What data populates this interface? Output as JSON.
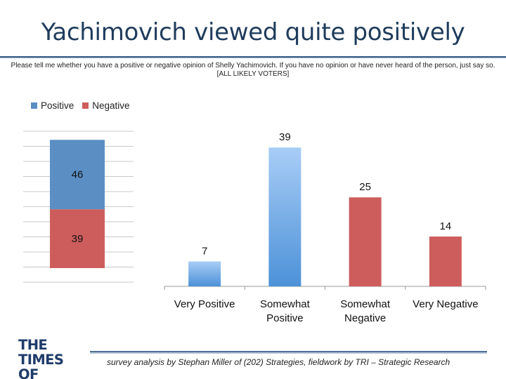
{
  "slide": {
    "title": "Yachimovich viewed quite positively",
    "question": "Please tell me whether you have a positive or negative opinion of Shelly Yachimovich. If you have no opinion or have never heard of the person, just say so. [ALL LIKELY VOTERS]",
    "footer_logo": "THE TIMES OF ISRAEL",
    "footer_credit": "survey analysis by Stephan Miller of (202) Strategies, fieldwork by TRI – Strategic Research"
  },
  "colors": {
    "title": "#1f3c5c",
    "positive": "#5b8fc4",
    "negative": "#cd5d5c",
    "positive_gradient_top": "#a8cdf6",
    "positive_gradient_bottom": "#4c91d8"
  },
  "chart_data": [
    {
      "type": "bar",
      "stacked": true,
      "categories": [
        ""
      ],
      "series": [
        {
          "name": "Positive",
          "values": [
            46
          ]
        },
        {
          "name": "Negative",
          "values": [
            39
          ]
        }
      ],
      "legend": "top-left",
      "grid": true,
      "ylim": [
        0,
        100
      ]
    },
    {
      "type": "bar",
      "categories": [
        "Very Positive",
        "Somewhat Positive",
        "Somewhat Negative",
        "Very Negative"
      ],
      "values": [
        7,
        39,
        25,
        14
      ],
      "ylim": [
        0,
        42
      ]
    }
  ]
}
